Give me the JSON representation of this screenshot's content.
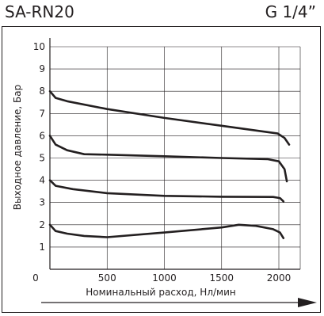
{
  "header": {
    "model": "SA-RN20",
    "thread": "G 1/4”"
  },
  "chart_data": {
    "type": "line",
    "xlabel": "Номинальный расход, Нл/мин",
    "ylabel": "Выходное давление, Бар",
    "xlim": [
      0,
      2200
    ],
    "ylim": [
      0,
      10
    ],
    "x_ticks": [
      "0",
      "500",
      "1000",
      "1500",
      "2000"
    ],
    "y_ticks": [
      "1",
      "2",
      "3",
      "4",
      "5",
      "6",
      "7",
      "8",
      "9",
      "10"
    ],
    "grid": true,
    "series": [
      {
        "x": [
          0,
          50,
          150,
          500,
          1000,
          1500,
          1990,
          2050,
          2090
        ],
        "y": [
          8.0,
          7.7,
          7.55,
          7.2,
          6.8,
          6.45,
          6.1,
          5.9,
          5.6
        ]
      },
      {
        "x": [
          0,
          50,
          150,
          300,
          500,
          1000,
          1500,
          1900,
          2000,
          2050,
          2070
        ],
        "y": [
          6.0,
          5.6,
          5.35,
          5.17,
          5.15,
          5.08,
          5.0,
          4.95,
          4.85,
          4.5,
          3.95
        ]
      },
      {
        "x": [
          0,
          50,
          200,
          500,
          1000,
          1500,
          1950,
          2010,
          2040
        ],
        "y": [
          4.0,
          3.75,
          3.6,
          3.42,
          3.3,
          3.26,
          3.25,
          3.2,
          3.05
        ]
      },
      {
        "x": [
          0,
          50,
          150,
          300,
          500,
          1000,
          1500,
          1650,
          1800,
          1950,
          2010,
          2040
        ],
        "y": [
          2.0,
          1.72,
          1.6,
          1.5,
          1.44,
          1.65,
          1.88,
          2.0,
          1.95,
          1.8,
          1.65,
          1.4
        ]
      }
    ]
  }
}
